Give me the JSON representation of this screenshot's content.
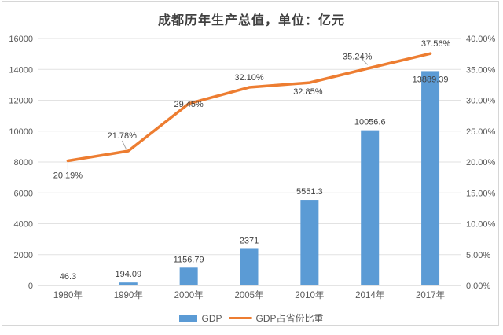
{
  "chart_data": {
    "type": "bar",
    "combo": "bar+line",
    "title": "成都历年生产总值，单位：亿元",
    "categories": [
      "1980年",
      "1990年",
      "2000年",
      "2005年",
      "2010年",
      "2014年",
      "2017年"
    ],
    "series": [
      {
        "name": "GDP",
        "type": "bar",
        "axis": "left",
        "color": "#5B9BD5",
        "values": [
          46.3,
          194.09,
          1156.79,
          2371,
          5551.3,
          10056.6,
          13889.39
        ],
        "labels": [
          "46.3",
          "194.09",
          "1156.79",
          "2371",
          "5551.3",
          "10056.6",
          "13889.39"
        ]
      },
      {
        "name": "GDP占省份比重",
        "type": "line",
        "axis": "right",
        "color": "#ED7D31",
        "values": [
          20.19,
          21.78,
          29.45,
          32.1,
          32.85,
          35.24,
          37.56
        ],
        "labels": [
          "20.19%",
          "21.78%",
          "29.45%",
          "32.10%",
          "32.85%",
          "35.24%",
          "37.56%"
        ]
      }
    ],
    "left_axis": {
      "min": 0,
      "max": 16000,
      "step": 2000,
      "ticks": [
        "0",
        "2000",
        "4000",
        "6000",
        "8000",
        "10000",
        "12000",
        "14000",
        "16000"
      ]
    },
    "right_axis": {
      "min": 0,
      "max": 40,
      "step": 5,
      "ticks": [
        "0.00%",
        "5.00%",
        "10.00%",
        "15.00%",
        "20.00%",
        "25.00%",
        "30.00%",
        "35.00%",
        "40.00%"
      ]
    },
    "grid": true,
    "legend_position": "bottom",
    "colors": {
      "grid_line": "#e2e2e2",
      "axis_line": "#c9c9c9",
      "tick_label": "#595959",
      "data_label": "#404040",
      "leader_line": "#a6a6a6"
    }
  }
}
